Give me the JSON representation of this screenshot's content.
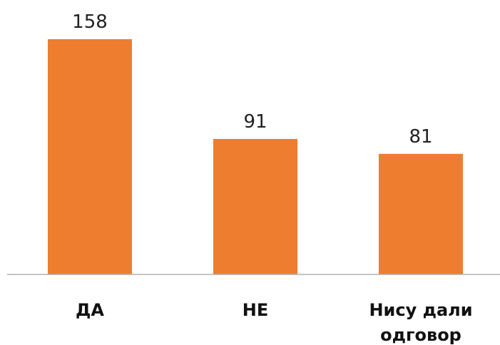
{
  "chart_data": {
    "type": "bar",
    "categories": [
      "ДА",
      "НЕ",
      "Нису дали одговор"
    ],
    "values": [
      158,
      91,
      81
    ],
    "color": "#ef7d30"
  }
}
